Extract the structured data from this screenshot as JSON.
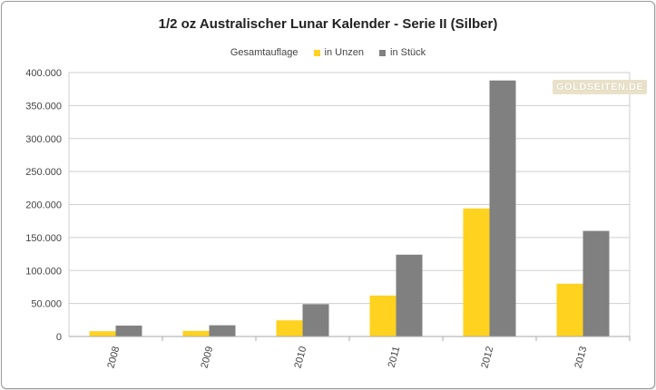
{
  "chart_data": {
    "type": "bar",
    "title": "1/2 oz Australischer Lunar Kalender - Serie II (Silber)",
    "legend_title": "Gesamtauflage",
    "legend_position": "top",
    "categories": [
      "2008",
      "2009",
      "2010",
      "2011",
      "2012",
      "2013"
    ],
    "series": [
      {
        "name": "in Unzen",
        "color": "#ffd21f",
        "values": [
          8000,
          8500,
          24500,
          62000,
          194000,
          80000
        ]
      },
      {
        "name": "in Stück",
        "color": "#808080",
        "values": [
          16500,
          17000,
          49000,
          124000,
          388000,
          160000
        ]
      }
    ],
    "yticks": [
      "0",
      "50.000",
      "100.000",
      "150.000",
      "200.000",
      "250.000",
      "300.000",
      "350.000",
      "400.000"
    ],
    "ylim": [
      0,
      400000
    ],
    "grid": true,
    "watermark": "GOLDSEITEN.DE"
  }
}
